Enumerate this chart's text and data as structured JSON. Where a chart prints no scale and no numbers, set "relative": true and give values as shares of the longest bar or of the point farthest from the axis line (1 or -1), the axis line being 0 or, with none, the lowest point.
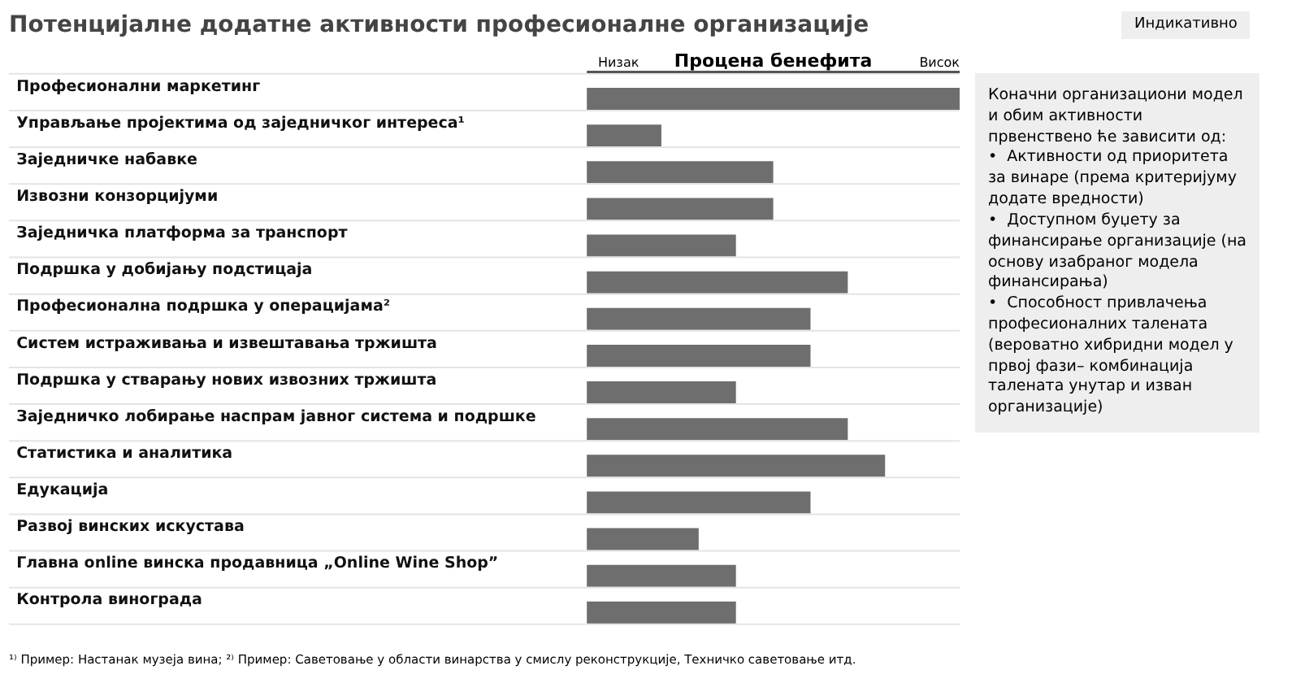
{
  "chart_data": {
    "type": "bar",
    "orientation": "horizontal",
    "relative": true,
    "title": "Потенцијалне додатне активности професионалне организације",
    "xlabel": "Процена бенефита",
    "categories": [
      "Професионални маркетинг",
      "Управљање пројектима од заједничког интереса¹",
      "Заједничке набавке",
      "Извозни конзорцијуми",
      "Заједничка платформа за транспорт",
      "Подршка у добијању подстицаја",
      "Професионална подршка у операцијама²",
      "Систем истраживања и извештавања тржишта",
      "Подршка у стварању нових извозних тржишта",
      "Заједничко лобирање наспрам јавног система и подршке",
      "Статистика и аналитика",
      "Едукација",
      "Развој винских искустава",
      "Главна online винска продавница „Online Wine Shop”",
      "Контрола винограда"
    ],
    "values": [
      1.0,
      0.2,
      0.5,
      0.5,
      0.4,
      0.7,
      0.6,
      0.6,
      0.4,
      0.7,
      0.8,
      0.6,
      0.3,
      0.4,
      0.4
    ],
    "color": "#6e6e6e",
    "annotations": [
      "Низак",
      "Висок",
      "Индикативно",
      "Коначни организациони модел и обим активности првенствено ће зависити од:\n•  Активности од приоритета за винаре (према критеријуму додате вредности)\n•  Доступном буџету за финансирање организације (на основу изабраног модела финансирања)\n•  Способност привлачења професионалних талената (вероватно хибридни модел у првој фази– комбинација талената унутар и изван организације)",
      "¹⁾ Пример: Настанак музеја вина; ²⁾ Пример: Саветовање у области винарства у смислу реконструкције, Техничко саветовање итд."
    ]
  }
}
